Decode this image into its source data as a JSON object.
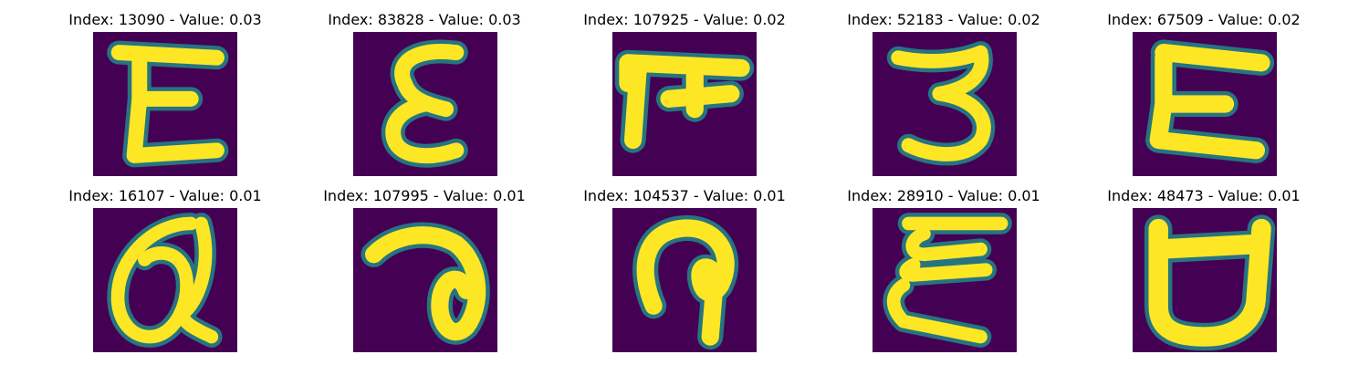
{
  "colors": {
    "background": "#440154",
    "foreground": "#fde725",
    "edge_mid": "#21918c",
    "edge_dark": "#3b528b",
    "title_text": "#000000"
  },
  "panels": [
    {
      "title": "Index: 13090 - Value: 0.03",
      "glyph": "E"
    },
    {
      "title": "Index: 83828 - Value: 0.03",
      "glyph": "epsilon"
    },
    {
      "title": "Index: 107925 - Value: 0.02",
      "glyph": "devanagari-pa"
    },
    {
      "title": "Index: 52183 - Value: 0.02",
      "glyph": "three"
    },
    {
      "title": "Index: 67509 - Value: 0.02",
      "glyph": "E"
    },
    {
      "title": "Index: 16107 - Value: 0.01",
      "glyph": "alpha-loop"
    },
    {
      "title": "Index: 107995 - Value: 0.01",
      "glyph": "reverse-a"
    },
    {
      "title": "Index: 104537 - Value: 0.01",
      "glyph": "hook-loop"
    },
    {
      "title": "Index: 28910 - Value: 0.01",
      "glyph": "double-e"
    },
    {
      "title": "Index: 48473 - Value: 0.01",
      "glyph": "cup"
    }
  ]
}
